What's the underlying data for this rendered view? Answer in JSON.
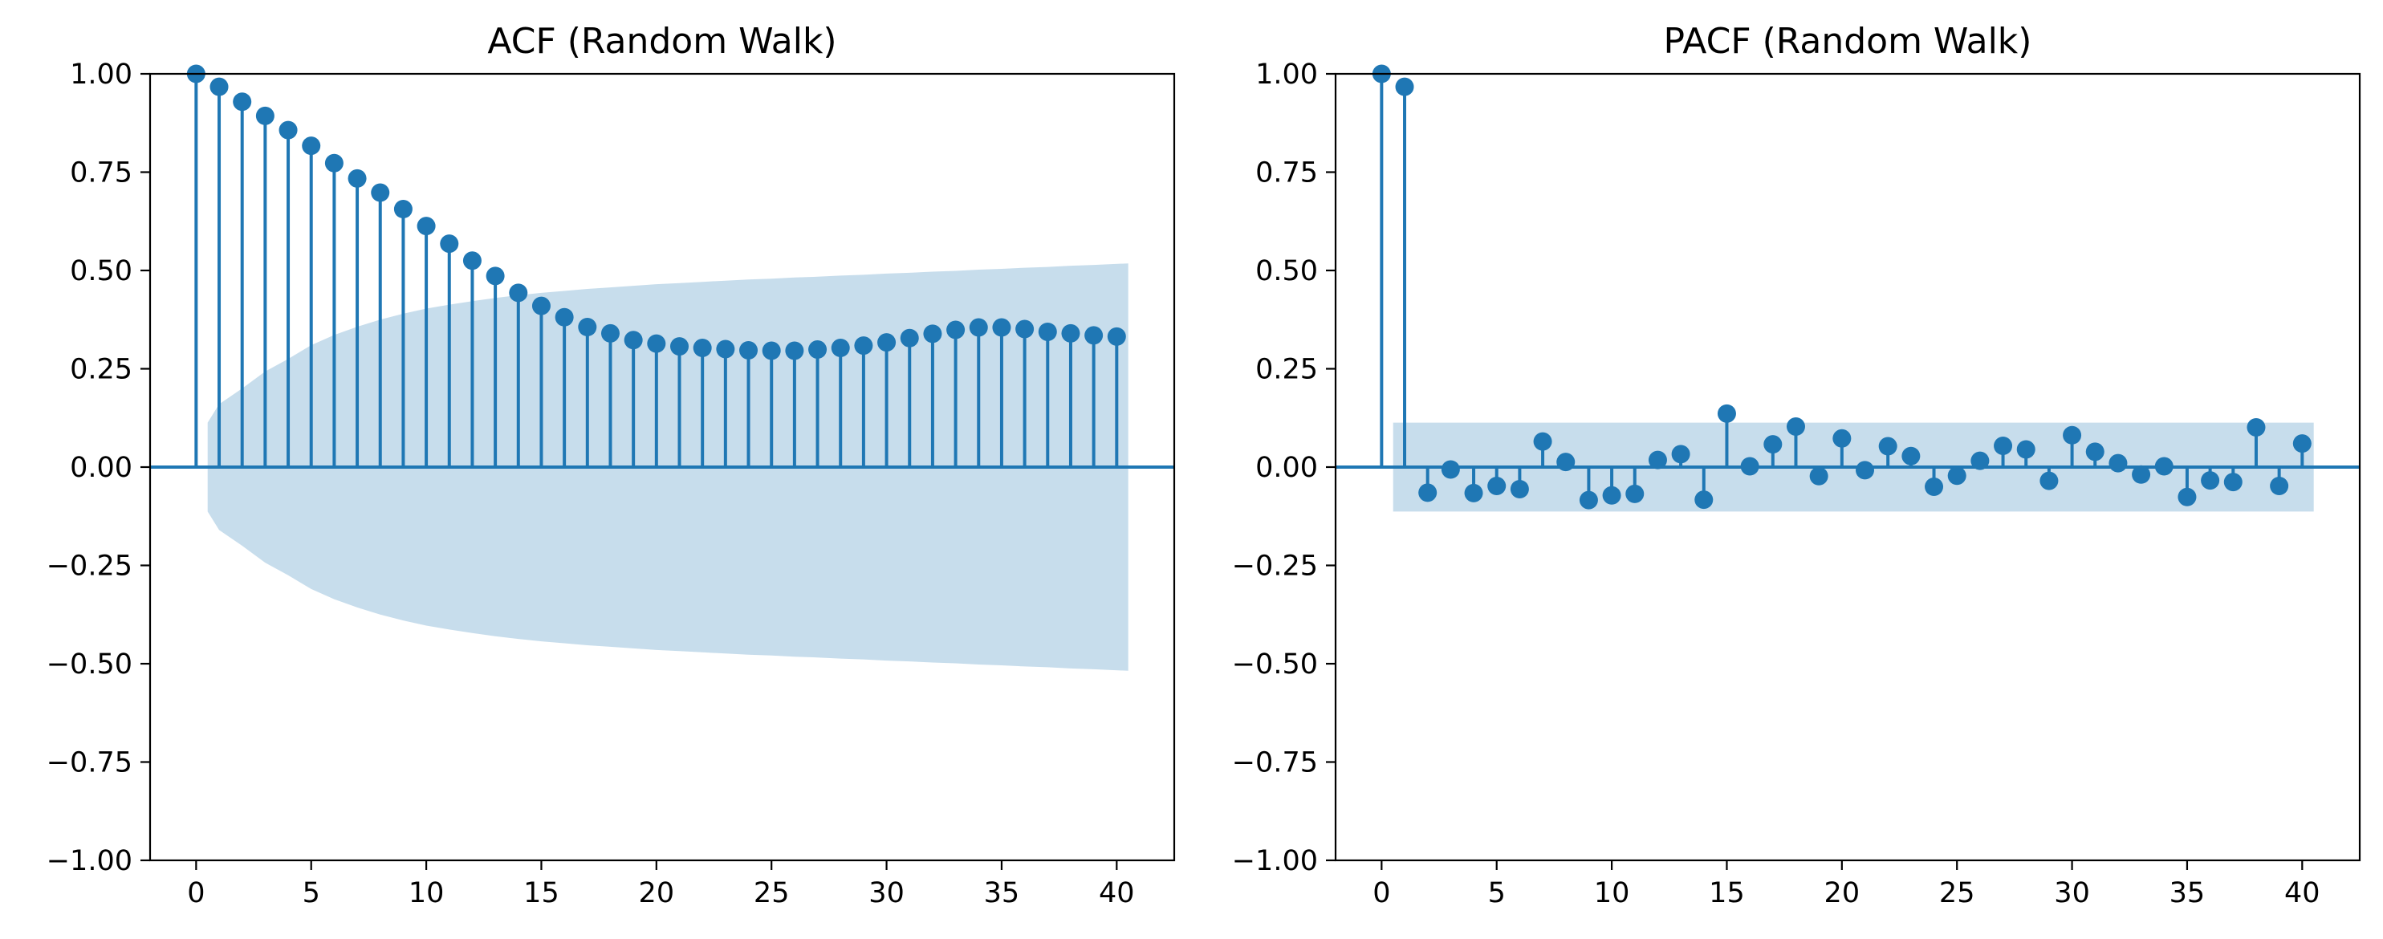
{
  "figure": {
    "colors": {
      "stem": "#1f77b4",
      "band": "#1f77b4"
    }
  },
  "chart_data": [
    {
      "type": "stem",
      "title": "ACF (Random Walk)",
      "xlabel": "",
      "ylabel": "",
      "xlim": [
        -2,
        42.5
      ],
      "ylim": [
        -1.0,
        1.0
      ],
      "x_ticks": [
        "0",
        "5",
        "10",
        "15",
        "20",
        "25",
        "30",
        "35",
        "40"
      ],
      "y_ticks": [
        "1.00",
        "0.75",
        "0.50",
        "0.25",
        "0.00",
        "−0.25",
        "−0.50",
        "−0.75",
        "−1.00"
      ],
      "grid": false,
      "lags": [
        0,
        1,
        2,
        3,
        4,
        5,
        6,
        7,
        8,
        9,
        10,
        11,
        12,
        13,
        14,
        15,
        16,
        17,
        18,
        19,
        20,
        21,
        22,
        23,
        24,
        25,
        26,
        27,
        28,
        29,
        30,
        31,
        32,
        33,
        34,
        35,
        36,
        37,
        38,
        39,
        40
      ],
      "values": [
        1.0,
        0.967,
        0.929,
        0.893,
        0.857,
        0.817,
        0.773,
        0.734,
        0.698,
        0.656,
        0.613,
        0.568,
        0.525,
        0.486,
        0.443,
        0.41,
        0.381,
        0.356,
        0.34,
        0.323,
        0.314,
        0.307,
        0.303,
        0.3,
        0.297,
        0.296,
        0.296,
        0.299,
        0.303,
        0.309,
        0.317,
        0.328,
        0.339,
        0.349,
        0.355,
        0.355,
        0.351,
        0.344,
        0.34,
        0.335,
        0.332
      ],
      "confidence_band": {
        "lags": [
          0.5,
          1,
          2,
          3,
          4,
          5,
          6,
          7,
          8,
          9,
          10,
          11,
          12,
          13,
          14,
          15,
          16,
          17,
          18,
          19,
          20,
          21,
          22,
          23,
          24,
          25,
          26,
          27,
          28,
          29,
          30,
          31,
          32,
          33,
          34,
          35,
          36,
          37,
          38,
          39,
          40.5
        ],
        "upper": [
          0.113,
          0.16,
          0.2,
          0.243,
          0.275,
          0.31,
          0.336,
          0.357,
          0.375,
          0.39,
          0.403,
          0.413,
          0.422,
          0.43,
          0.437,
          0.443,
          0.448,
          0.453,
          0.457,
          0.461,
          0.465,
          0.468,
          0.471,
          0.474,
          0.477,
          0.479,
          0.482,
          0.484,
          0.487,
          0.489,
          0.492,
          0.494,
          0.497,
          0.499,
          0.502,
          0.504,
          0.507,
          0.509,
          0.512,
          0.514,
          0.518
        ],
        "lower": [
          -0.113,
          -0.16,
          -0.2,
          -0.243,
          -0.275,
          -0.31,
          -0.336,
          -0.357,
          -0.375,
          -0.39,
          -0.403,
          -0.413,
          -0.422,
          -0.43,
          -0.437,
          -0.443,
          -0.448,
          -0.453,
          -0.457,
          -0.461,
          -0.465,
          -0.468,
          -0.471,
          -0.474,
          -0.477,
          -0.479,
          -0.482,
          -0.484,
          -0.487,
          -0.489,
          -0.492,
          -0.494,
          -0.497,
          -0.499,
          -0.502,
          -0.504,
          -0.507,
          -0.509,
          -0.512,
          -0.514,
          -0.518
        ]
      }
    },
    {
      "type": "stem",
      "title": "PACF (Random Walk)",
      "xlabel": "",
      "ylabel": "",
      "xlim": [
        -2,
        42.5
      ],
      "ylim": [
        -1.0,
        1.0
      ],
      "x_ticks": [
        "0",
        "5",
        "10",
        "15",
        "20",
        "25",
        "30",
        "35",
        "40"
      ],
      "y_ticks": [
        "1.00",
        "0.75",
        "0.50",
        "0.25",
        "0.00",
        "−0.25",
        "−0.50",
        "−0.75",
        "−1.00"
      ],
      "grid": false,
      "lags": [
        0,
        1,
        2,
        3,
        4,
        5,
        6,
        7,
        8,
        9,
        10,
        11,
        12,
        13,
        14,
        15,
        16,
        17,
        18,
        19,
        20,
        21,
        22,
        23,
        24,
        25,
        26,
        27,
        28,
        29,
        30,
        31,
        32,
        33,
        34,
        35,
        36,
        37,
        38,
        39,
        40
      ],
      "values": [
        1.0,
        0.967,
        -0.065,
        -0.006,
        -0.066,
        -0.048,
        -0.056,
        0.065,
        0.013,
        -0.084,
        -0.072,
        -0.068,
        0.018,
        0.033,
        -0.083,
        0.136,
        0.002,
        0.058,
        0.103,
        -0.023,
        0.073,
        -0.008,
        0.053,
        0.028,
        -0.05,
        -0.022,
        0.016,
        0.054,
        0.045,
        -0.035,
        0.081,
        0.039,
        0.01,
        -0.019,
        0.002,
        -0.076,
        -0.034,
        -0.038,
        0.101,
        -0.048,
        0.06
      ],
      "confidence_band": {
        "lags": [
          0.5,
          40.5
        ],
        "upper": [
          0.113,
          0.113
        ],
        "lower": [
          -0.113,
          -0.113
        ]
      }
    }
  ]
}
